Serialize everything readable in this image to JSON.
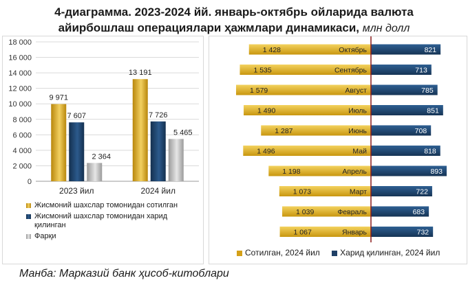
{
  "title": {
    "line1": "4-диаграмма. 2023-2024 йй. январь-октябрь ойларида валюта",
    "line2": "айирбошлаш операциялари ҳажмлари динамикаси,",
    "unit": "млн долл"
  },
  "source": "Манба: Марказий банк ҳисоб-китоблари",
  "colors": {
    "gold": "#D4A017",
    "navy": "#1F3F66",
    "gray": "#B3B3B3",
    "divider": "#8B1A1A"
  },
  "chart_data": [
    {
      "type": "bar",
      "categories": [
        "2023 йил",
        "2024 йил"
      ],
      "series": [
        {
          "name": "Жисмоний шахслар томонидан сотилган",
          "values": [
            9971,
            13191
          ]
        },
        {
          "name": "Жисмоний шахслар томонидан харид қилинган",
          "values": [
            7607,
            7726
          ]
        },
        {
          "name": "Фарқи",
          "values": [
            2364,
            5465
          ]
        }
      ],
      "value_labels": [
        [
          "9 971",
          "13 191"
        ],
        [
          "7 607",
          "7 726"
        ],
        [
          "2 364",
          "5 465"
        ]
      ],
      "ylim": [
        0,
        18000
      ],
      "yticks": [
        "0",
        "2 000",
        "4 000",
        "6 000",
        "8 000",
        "10 000",
        "12 000",
        "14 000",
        "16 000",
        "18 000"
      ],
      "grid": true,
      "legend_position": "bottom"
    },
    {
      "type": "bar",
      "orientation": "horizontal-diverging",
      "categories": [
        "Октябрь",
        "Сентябрь",
        "Август",
        "Июль",
        "Июнь",
        "Май",
        "Апрель",
        "Март",
        "Февраль",
        "Январь"
      ],
      "series": [
        {
          "name": "Сотилган, 2024 йил",
          "values": [
            1428,
            1535,
            1579,
            1490,
            1287,
            1496,
            1198,
            1073,
            1039,
            1067
          ],
          "labels": [
            "1 428",
            "1 535",
            "1 579",
            "1 490",
            "1 287",
            "1 496",
            "1 198",
            "1 073",
            "1 039",
            "1 067"
          ]
        },
        {
          "name": "Харид қилинган, 2024 йил",
          "values": [
            821,
            713,
            785,
            851,
            708,
            818,
            893,
            722,
            683,
            732
          ],
          "labels": [
            "821",
            "713",
            "785",
            "851",
            "708",
            "818",
            "893",
            "722",
            "683",
            "732"
          ]
        }
      ],
      "legend_position": "bottom"
    }
  ]
}
